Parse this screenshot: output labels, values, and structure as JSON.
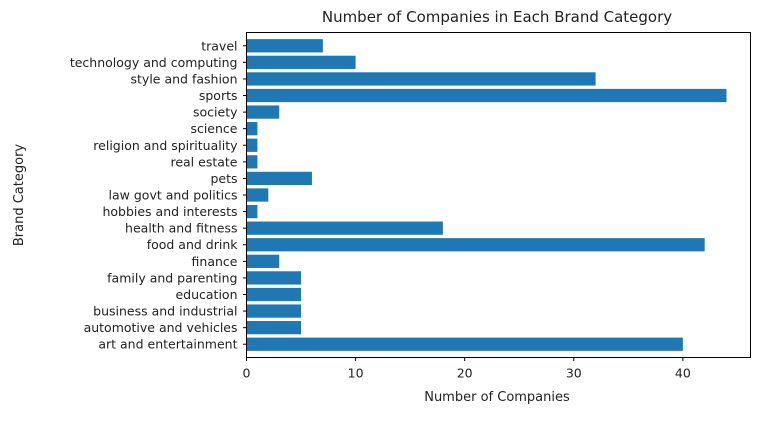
{
  "chart_data": {
    "type": "bar",
    "orientation": "horizontal",
    "title": "Number of Companies in Each Brand Category",
    "xlabel": "Number of Companies",
    "ylabel": "Brand Category",
    "xlim": [
      0,
      46.2
    ],
    "xticks": [
      0,
      10,
      20,
      30,
      40
    ],
    "grid": false,
    "bar_color": "#1f77b4",
    "categories": [
      "art and entertainment",
      "automotive and vehicles",
      "business and industrial",
      "education",
      "family and parenting",
      "finance",
      "food and drink",
      "health and fitness",
      "hobbies and interests",
      "law govt and politics",
      "pets",
      "real estate",
      "religion and spirituality",
      "science",
      "society",
      "sports",
      "style and fashion",
      "technology and computing",
      "travel"
    ],
    "values": [
      40,
      5,
      5,
      5,
      5,
      3,
      42,
      18,
      1,
      2,
      6,
      1,
      1,
      1,
      3,
      44,
      32,
      10,
      7
    ]
  }
}
